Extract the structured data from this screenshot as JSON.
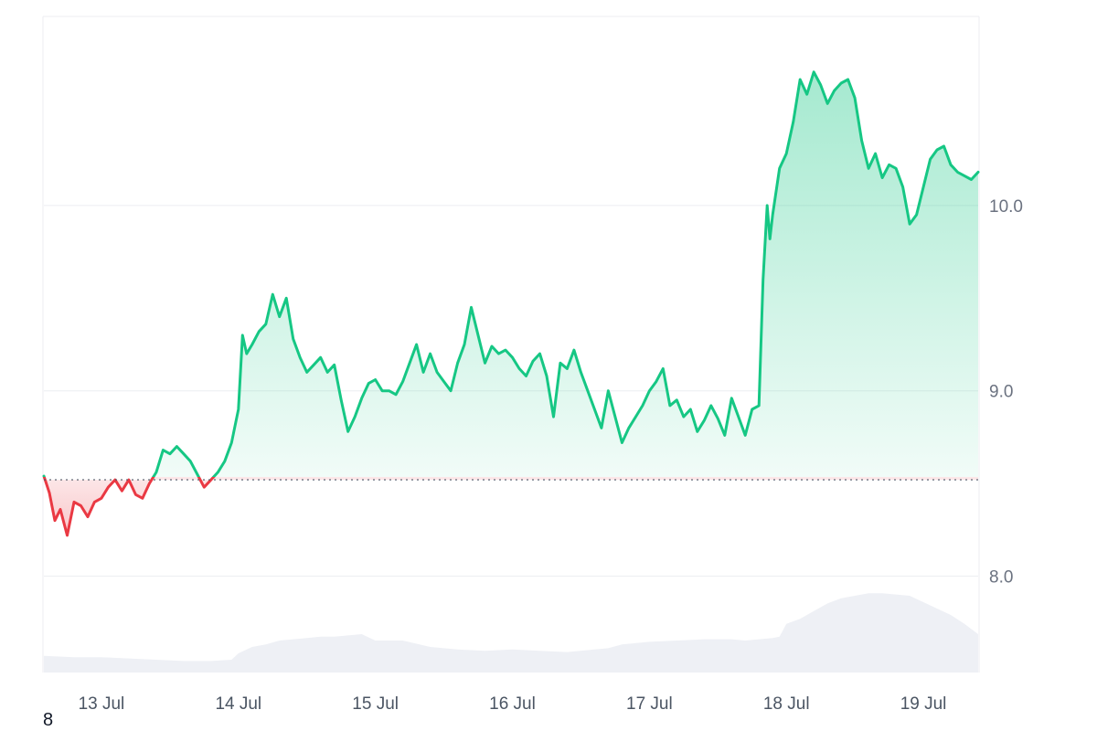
{
  "chart_data": {
    "type": "area",
    "title": "",
    "xlabel": "",
    "ylabel": "",
    "y_axis_position": "right",
    "grid": true,
    "ylim": [
      7.48,
      11.02
    ],
    "xlim": [
      12.58,
      19.4
    ],
    "baseline": 8.52,
    "y_ticks": [
      {
        "value": 8.0,
        "label": "8.0"
      },
      {
        "value": 9.0,
        "label": "9.0"
      },
      {
        "value": 10.0,
        "label": "10.0"
      }
    ],
    "x_ticks": [
      {
        "value": 13,
        "label": "13 Jul"
      },
      {
        "value": 14,
        "label": "14 Jul"
      },
      {
        "value": 15,
        "label": "15 Jul"
      },
      {
        "value": 16,
        "label": "16 Jul"
      },
      {
        "value": 17,
        "label": "17 Jul"
      },
      {
        "value": 18,
        "label": "18 Jul"
      },
      {
        "value": 19,
        "label": "19 Jul"
      }
    ],
    "colors": {
      "above": "#16c784",
      "below": "#ea3943",
      "volume": "#eef0f5",
      "grid": "#eceef2"
    },
    "price": {
      "x": [
        12.58,
        12.62,
        12.66,
        12.7,
        12.75,
        12.8,
        12.85,
        12.9,
        12.95,
        13.0,
        13.05,
        13.1,
        13.15,
        13.2,
        13.25,
        13.3,
        13.35,
        13.4,
        13.45,
        13.5,
        13.55,
        13.6,
        13.65,
        13.7,
        13.75,
        13.8,
        13.85,
        13.9,
        13.95,
        14.0,
        14.03,
        14.06,
        14.1,
        14.15,
        14.2,
        14.25,
        14.3,
        14.35,
        14.4,
        14.45,
        14.5,
        14.55,
        14.6,
        14.65,
        14.7,
        14.75,
        14.8,
        14.85,
        14.9,
        14.95,
        15.0,
        15.05,
        15.1,
        15.15,
        15.2,
        15.25,
        15.3,
        15.35,
        15.4,
        15.45,
        15.5,
        15.55,
        15.6,
        15.65,
        15.7,
        15.75,
        15.8,
        15.85,
        15.9,
        15.95,
        16.0,
        16.05,
        16.1,
        16.15,
        16.2,
        16.25,
        16.3,
        16.35,
        16.4,
        16.45,
        16.5,
        16.55,
        16.6,
        16.65,
        16.7,
        16.75,
        16.8,
        16.85,
        16.9,
        16.95,
        17.0,
        17.05,
        17.1,
        17.15,
        17.2,
        17.25,
        17.3,
        17.35,
        17.4,
        17.45,
        17.5,
        17.55,
        17.6,
        17.65,
        17.7,
        17.75,
        17.8,
        17.83,
        17.86,
        17.88,
        17.9,
        17.95,
        18.0,
        18.05,
        18.1,
        18.15,
        18.2,
        18.25,
        18.3,
        18.35,
        18.4,
        18.45,
        18.5,
        18.55,
        18.6,
        18.65,
        18.7,
        18.75,
        18.8,
        18.85,
        18.9,
        18.95,
        19.0,
        19.05,
        19.1,
        19.15,
        19.2,
        19.25,
        19.3,
        19.35,
        19.4
      ],
      "y": [
        8.54,
        8.45,
        8.3,
        8.36,
        8.22,
        8.4,
        8.38,
        8.32,
        8.4,
        8.42,
        8.48,
        8.52,
        8.46,
        8.52,
        8.44,
        8.42,
        8.5,
        8.56,
        8.68,
        8.66,
        8.7,
        8.66,
        8.62,
        8.55,
        8.48,
        8.52,
        8.56,
        8.62,
        8.72,
        8.9,
        9.3,
        9.2,
        9.25,
        9.32,
        9.36,
        9.52,
        9.4,
        9.5,
        9.28,
        9.18,
        9.1,
        9.14,
        9.18,
        9.1,
        9.14,
        8.95,
        8.78,
        8.86,
        8.96,
        9.04,
        9.06,
        9.0,
        9.0,
        8.98,
        9.05,
        9.15,
        9.25,
        9.1,
        9.2,
        9.1,
        9.05,
        9.0,
        9.15,
        9.25,
        9.45,
        9.3,
        9.15,
        9.24,
        9.2,
        9.22,
        9.18,
        9.12,
        9.08,
        9.16,
        9.2,
        9.08,
        8.86,
        9.15,
        9.12,
        9.22,
        9.1,
        9.0,
        8.9,
        8.8,
        9.0,
        8.86,
        8.72,
        8.8,
        8.86,
        8.92,
        9.0,
        9.05,
        9.12,
        8.92,
        8.95,
        8.86,
        8.9,
        8.78,
        8.84,
        8.92,
        8.85,
        8.76,
        8.96,
        8.86,
        8.76,
        8.9,
        8.92,
        9.6,
        10.0,
        9.82,
        9.95,
        10.2,
        10.28,
        10.45,
        10.68,
        10.6,
        10.72,
        10.65,
        10.55,
        10.62,
        10.66,
        10.68,
        10.58,
        10.35,
        10.2,
        10.28,
        10.15,
        10.22,
        10.2,
        10.1,
        9.9,
        9.95,
        10.1,
        10.25,
        10.3,
        10.32,
        10.22,
        10.18,
        10.16,
        10.14,
        10.18
      ]
    },
    "volume": {
      "x": [
        12.58,
        12.8,
        13.0,
        13.2,
        13.4,
        13.6,
        13.8,
        13.95,
        14.0,
        14.1,
        14.2,
        14.3,
        14.4,
        14.5,
        14.6,
        14.7,
        14.8,
        14.9,
        15.0,
        15.2,
        15.4,
        15.6,
        15.8,
        16.0,
        16.2,
        16.4,
        16.6,
        16.7,
        16.8,
        17.0,
        17.2,
        17.4,
        17.6,
        17.7,
        17.9,
        17.95,
        18.0,
        18.1,
        18.2,
        18.3,
        18.4,
        18.5,
        18.6,
        18.7,
        18.8,
        18.9,
        19.0,
        19.1,
        19.2,
        19.3,
        19.4
      ],
      "y": [
        0.13,
        0.12,
        0.12,
        0.11,
        0.1,
        0.09,
        0.09,
        0.1,
        0.15,
        0.2,
        0.22,
        0.25,
        0.26,
        0.27,
        0.28,
        0.28,
        0.29,
        0.3,
        0.25,
        0.25,
        0.2,
        0.18,
        0.17,
        0.18,
        0.17,
        0.16,
        0.18,
        0.19,
        0.22,
        0.24,
        0.25,
        0.26,
        0.26,
        0.25,
        0.27,
        0.28,
        0.38,
        0.42,
        0.48,
        0.54,
        0.58,
        0.6,
        0.62,
        0.62,
        0.61,
        0.6,
        0.55,
        0.5,
        0.45,
        0.38,
        0.3
      ]
    }
  },
  "footer": {
    "corner_label": "8"
  }
}
